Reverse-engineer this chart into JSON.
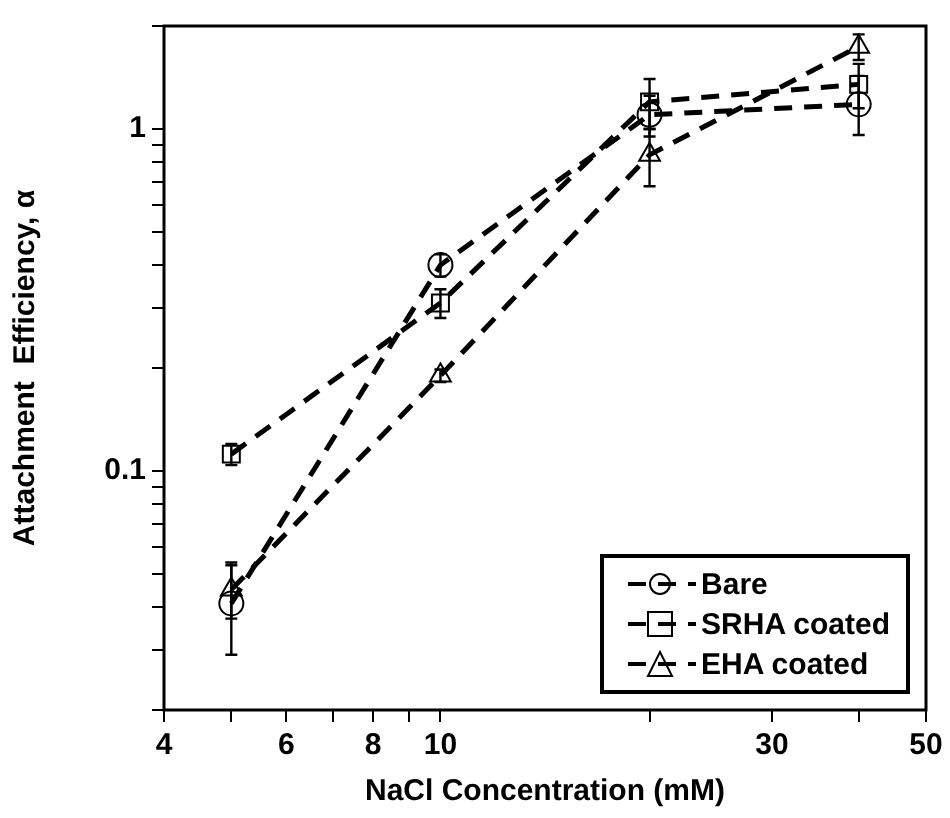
{
  "chart_data": {
    "type": "line",
    "xlabel": "NaCl Concentration (mM)",
    "ylabel": "Attachment  Efficiency, α",
    "x": [
      5,
      10,
      20,
      40
    ],
    "series": [
      {
        "name": "Bare",
        "color": "#000000",
        "marker": "circle",
        "values": [
          0.041,
          0.4,
          1.1,
          1.18
        ],
        "errors": [
          [
            0.029,
            0.054
          ],
          0.03,
          0.15,
          [
            0.96,
            1.43
          ]
        ]
      },
      {
        "name": "SRHA coated",
        "color": "#000000",
        "marker": "square",
        "values": [
          0.112,
          0.31,
          1.2,
          1.35
        ],
        "errors": [
          0.008,
          0.03,
          0.2,
          0.2
        ]
      },
      {
        "name": "EHA coated",
        "color": "#000000",
        "marker": "triangle",
        "values": [
          0.045,
          0.19,
          0.84,
          1.74
        ],
        "errors": [
          0.008,
          0.008,
          0.16,
          0.15
        ]
      }
    ],
    "log": "xy",
    "xlim": [
      4,
      50
    ],
    "ylim": [
      0.02,
      2
    ],
    "xticks": [
      4,
      {
        "value": 5,
        "label": null
      },
      6,
      {
        "value": 7,
        "label": null
      },
      8,
      {
        "value": 9,
        "label": null
      },
      10,
      {
        "value": 20,
        "label": null
      },
      30,
      {
        "value": 40,
        "label": null
      },
      50
    ],
    "yticks": [
      {
        "value": 0.02,
        "label": null
      },
      {
        "value": 0.03,
        "label": null
      },
      {
        "value": 0.04,
        "label": null
      },
      {
        "value": 0.05,
        "label": null
      },
      {
        "value": 0.06,
        "label": null
      },
      {
        "value": 0.07,
        "label": null
      },
      {
        "value": 0.08,
        "label": null
      },
      {
        "value": 0.09,
        "label": null
      },
      0.1,
      {
        "value": 0.2,
        "label": null
      },
      {
        "value": 0.3,
        "label": null
      },
      {
        "value": 0.4,
        "label": null
      },
      {
        "value": 0.5,
        "label": null
      },
      {
        "value": 0.6,
        "label": null
      },
      {
        "value": 0.7,
        "label": null
      },
      {
        "value": 0.8,
        "label": null
      },
      {
        "value": 0.9,
        "label": null
      },
      1,
      {
        "value": 2,
        "label": null
      }
    ],
    "grid": false,
    "legend": "bottom right",
    "line_style": "dashed"
  }
}
